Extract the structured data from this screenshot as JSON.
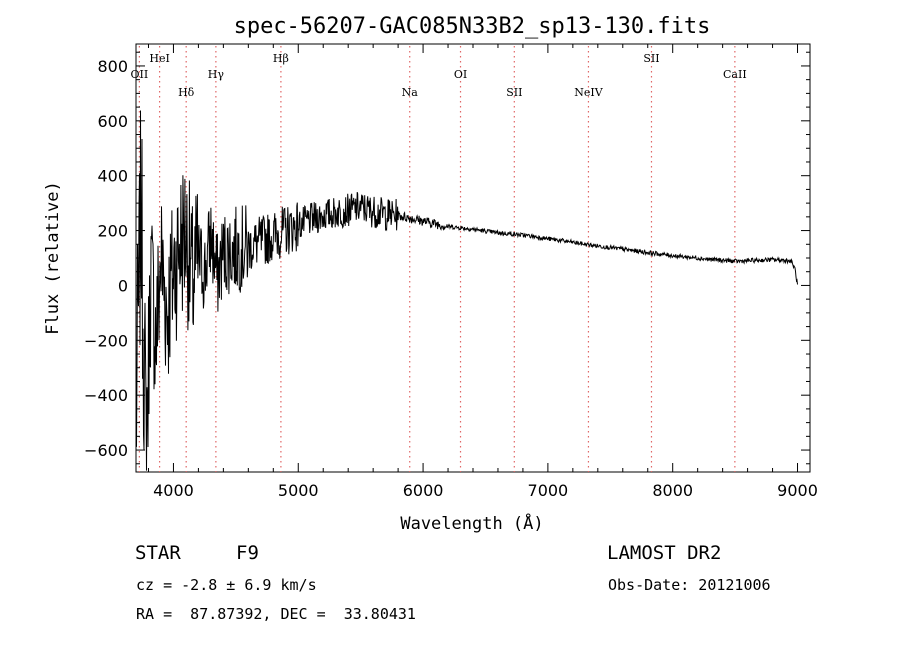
{
  "chart_data": {
    "type": "line",
    "title": "spec-56207-GAC085N33B2_sp13-130.fits",
    "xlabel": "Wavelength (Å)",
    "ylabel": "Flux (relative)",
    "xlim": [
      3700,
      9100
    ],
    "ylim": [
      -680,
      880
    ],
    "x_ticks": [
      4000,
      5000,
      6000,
      7000,
      8000,
      9000
    ],
    "y_ticks": [
      -600,
      -400,
      -200,
      0,
      200,
      400,
      600,
      800
    ],
    "grid": false,
    "line_color": "#000000",
    "marker_color": "#e06666",
    "series": [
      {
        "x": [
          3700,
          3740,
          3780,
          3820,
          3860,
          3900,
          3950,
          4000,
          4050,
          4100,
          4150,
          4200,
          4250,
          4300,
          4350,
          4400,
          4500,
          4600,
          4700,
          4800,
          4900,
          5000,
          5100,
          5200,
          5300,
          5400,
          5500,
          5600,
          5700,
          5800,
          5900,
          6000,
          6100,
          6200,
          6300,
          6400,
          6500,
          6600,
          6700,
          6800,
          6900,
          7000,
          7100,
          7200,
          7300,
          7400,
          7500,
          7600,
          7700,
          7800,
          7900,
          8000,
          8100,
          8200,
          8300,
          8400,
          8500,
          8600,
          8700,
          8800,
          8900,
          8950,
          8980,
          9000
        ],
        "y": [
          -500,
          300,
          -600,
          50,
          -200,
          100,
          -100,
          50,
          150,
          200,
          0,
          100,
          50,
          180,
          30,
          120,
          130,
          140,
          160,
          180,
          200,
          220,
          240,
          255,
          265,
          275,
          285,
          270,
          260,
          255,
          245,
          235,
          225,
          215,
          210,
          205,
          198,
          192,
          188,
          183,
          178,
          170,
          164,
          157,
          150,
          144,
          138,
          132,
          126,
          120,
          114,
          109,
          104,
          100,
          95,
          92,
          88,
          90,
          92,
          94,
          92,
          88,
          60,
          0
        ]
      }
    ],
    "line_markers": [
      {
        "label": "OII",
        "x": 3727,
        "row": 1
      },
      {
        "label": "HeI",
        "x": 3889,
        "row": 0
      },
      {
        "label": "Hδ",
        "x": 4102,
        "row": 2
      },
      {
        "label": "Hγ",
        "x": 4340,
        "row": 1
      },
      {
        "label": "Hβ",
        "x": 4861,
        "row": 0
      },
      {
        "label": "Na",
        "x": 5893,
        "row": 2
      },
      {
        "label": "OI",
        "x": 6300,
        "row": 1
      },
      {
        "label": "SII",
        "x": 6731,
        "row": 2
      },
      {
        "label": "NeIV",
        "x": 7325,
        "row": 2
      },
      {
        "label": "SII",
        "x": 7830,
        "row": 0
      },
      {
        "label": "CaII",
        "x": 8498,
        "row": 1
      }
    ]
  },
  "info": {
    "class_label": "STAR",
    "subclass": "F9",
    "survey": "LAMOST DR2",
    "redshift": "cz = -2.8 ± 6.9 km/s",
    "obs_date": "Obs-Date: 20121006",
    "coords": "RA =  87.87392, DEC =  33.80431"
  }
}
